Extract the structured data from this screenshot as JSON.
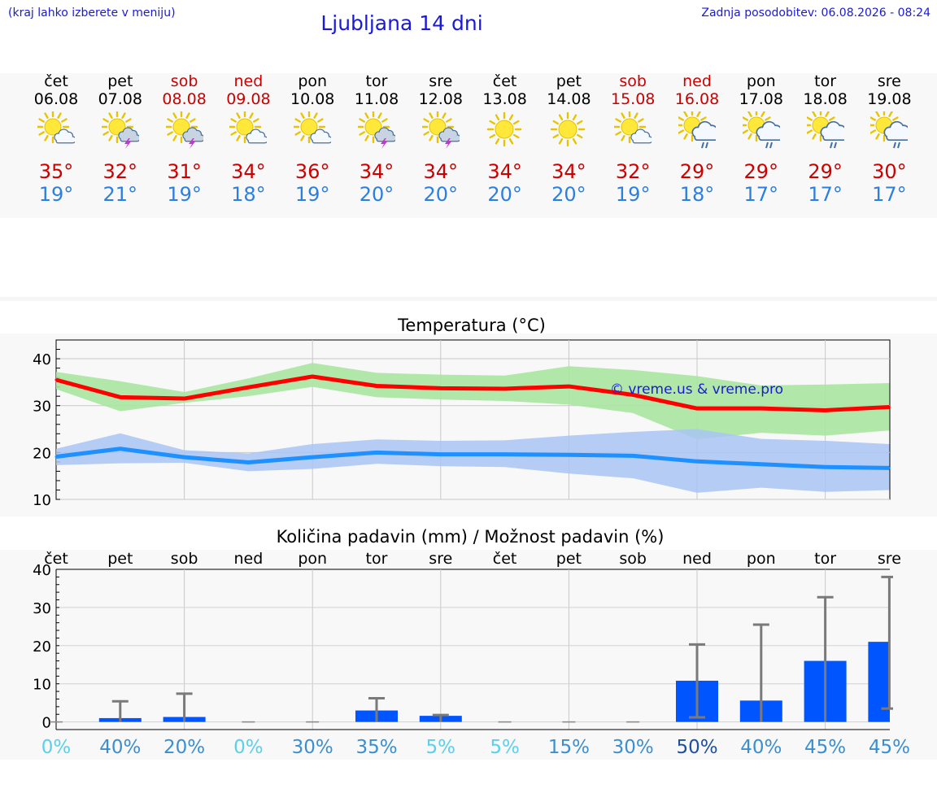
{
  "header": {
    "note": "(kraj lahko izberete v meniju)",
    "title": "Ljubljana 14 dni",
    "updated": "Zadnja posodobitev: 06.08.2026 - 08:24"
  },
  "days": [
    {
      "name": "čet",
      "date": "06.08",
      "weekend": false,
      "icon": "sun-cloud-icon",
      "tmax": "35°",
      "tmin": "19°"
    },
    {
      "name": "pet",
      "date": "07.08",
      "weekend": false,
      "icon": "sun-storm-icon",
      "tmax": "32°",
      "tmin": "21°"
    },
    {
      "name": "sob",
      "date": "08.08",
      "weekend": true,
      "icon": "sun-storm-icon",
      "tmax": "31°",
      "tmin": "19°"
    },
    {
      "name": "ned",
      "date": "09.08",
      "weekend": true,
      "icon": "sun-cloud-icon",
      "tmax": "34°",
      "tmin": "18°"
    },
    {
      "name": "pon",
      "date": "10.08",
      "weekend": false,
      "icon": "sun-cloud-icon",
      "tmax": "36°",
      "tmin": "19°"
    },
    {
      "name": "tor",
      "date": "11.08",
      "weekend": false,
      "icon": "sun-storm-icon",
      "tmax": "34°",
      "tmin": "20°"
    },
    {
      "name": "sre",
      "date": "12.08",
      "weekend": false,
      "icon": "sun-storm-icon",
      "tmax": "34°",
      "tmin": "20°"
    },
    {
      "name": "čet",
      "date": "13.08",
      "weekend": false,
      "icon": "sun-icon",
      "tmax": "34°",
      "tmin": "20°"
    },
    {
      "name": "pet",
      "date": "14.08",
      "weekend": false,
      "icon": "sun-icon",
      "tmax": "34°",
      "tmin": "20°"
    },
    {
      "name": "sob",
      "date": "15.08",
      "weekend": true,
      "icon": "sun-cloud-icon",
      "tmax": "32°",
      "tmin": "19°"
    },
    {
      "name": "ned",
      "date": "16.08",
      "weekend": true,
      "icon": "sun-rain-icon",
      "tmax": "29°",
      "tmin": "18°"
    },
    {
      "name": "pon",
      "date": "17.08",
      "weekend": false,
      "icon": "sun-rain-icon",
      "tmax": "29°",
      "tmin": "17°"
    },
    {
      "name": "tor",
      "date": "18.08",
      "weekend": false,
      "icon": "sun-rain-icon",
      "tmax": "29°",
      "tmin": "17°"
    },
    {
      "name": "sre",
      "date": "19.08",
      "weekend": false,
      "icon": "sun-rain-icon",
      "tmax": "30°",
      "tmin": "17°"
    }
  ],
  "colors": {
    "title": "#1a1ad6",
    "weekend": "#cc0000",
    "tmax_line": "#ff0000",
    "tmax_band": "#a8e6a0",
    "tmin_line": "#1e90ff",
    "tmin_band": "#a9c4f5",
    "rain_bar": "#0055ff"
  },
  "chart_data": [
    {
      "type": "line",
      "title": "Temperatura (°C)",
      "watermark": "© vreme.us & vreme.pro",
      "x": [
        "06.08",
        "07.08",
        "08.08",
        "09.08",
        "10.08",
        "11.08",
        "12.08",
        "13.08",
        "14.08",
        "15.08",
        "16.08",
        "17.08",
        "18.08",
        "19.08"
      ],
      "ylim": [
        10,
        44
      ],
      "yticks": [
        10,
        20,
        30,
        40
      ],
      "grid": true,
      "series": [
        {
          "values": [
            35.5,
            31.8,
            31.5,
            33.9,
            36.2,
            34.2,
            33.7,
            33.6,
            34.1,
            32.3,
            29.4,
            29.4,
            29.0,
            29.7
          ],
          "band_low": [
            33.5,
            28.8,
            30.6,
            32.0,
            34.0,
            31.8,
            31.3,
            31.0,
            30.2,
            28.4,
            22.8,
            24.2,
            23.6,
            24.7
          ],
          "band_high": [
            37.2,
            35.2,
            32.9,
            35.8,
            39.1,
            37.0,
            36.6,
            36.4,
            38.4,
            37.6,
            36.3,
            34.3,
            34.5,
            34.8
          ]
        },
        {
          "values": [
            19.1,
            20.8,
            19.0,
            17.9,
            19.0,
            20.0,
            19.6,
            19.6,
            19.5,
            19.3,
            18.1,
            17.5,
            16.9,
            16.7
          ],
          "band_low": [
            17.3,
            17.7,
            17.8,
            16.0,
            16.5,
            17.6,
            17.1,
            16.9,
            15.5,
            14.5,
            11.4,
            12.5,
            11.6,
            12.0
          ],
          "band_high": [
            20.8,
            24.1,
            20.5,
            19.8,
            21.8,
            22.8,
            22.5,
            22.6,
            23.6,
            24.4,
            25.0,
            22.9,
            22.5,
            21.8
          ]
        }
      ]
    },
    {
      "type": "bar",
      "title": "Količina padavin (mm) / Možnost padavin (%)",
      "categories": [
        "čet",
        "pet",
        "sob",
        "ned",
        "pon",
        "tor",
        "sre",
        "čet",
        "pet",
        "sob",
        "ned",
        "pon",
        "tor",
        "sre"
      ],
      "ylim": [
        -2,
        40
      ],
      "yticks": [
        0,
        10,
        20,
        30,
        40
      ],
      "grid": true,
      "values": [
        0,
        1.0,
        1.3,
        0,
        0,
        3.0,
        1.6,
        0,
        0,
        0,
        10.8,
        5.6,
        16.0,
        21.0
      ],
      "error_low": [
        0,
        0,
        0,
        0,
        0,
        0,
        0,
        0,
        0,
        0,
        1.2,
        0,
        0,
        3.5
      ],
      "error_high": [
        0,
        5.4,
        7.4,
        0,
        0,
        6.2,
        1.8,
        0,
        0,
        0,
        20.3,
        25.5,
        32.7,
        38.0
      ],
      "probability": [
        "0%",
        "40%",
        "20%",
        "0%",
        "30%",
        "35%",
        "5%",
        "5%",
        "15%",
        "30%",
        "50%",
        "40%",
        "45%",
        "45%"
      ]
    }
  ]
}
